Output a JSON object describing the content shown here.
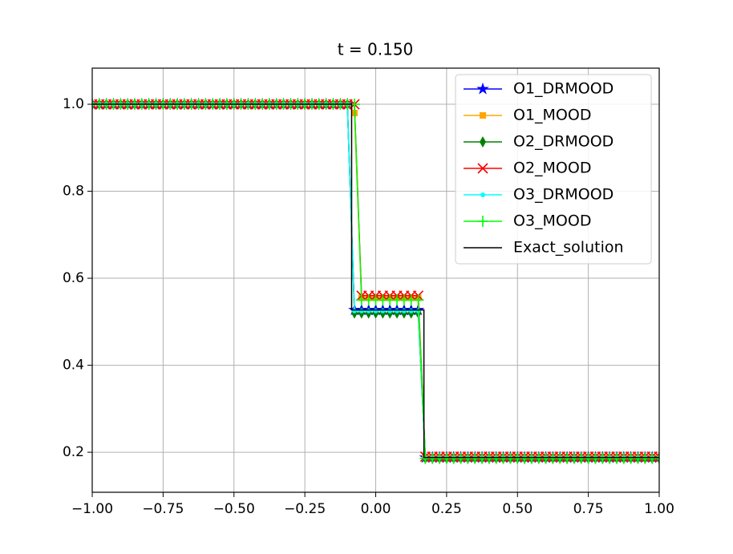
{
  "chart_data": {
    "type": "line",
    "title": "t = 0.150",
    "x": [
      -1,
      -0.975,
      -0.95,
      -0.925,
      -0.9,
      -0.875,
      -0.85,
      -0.825,
      -0.8,
      -0.775,
      -0.75,
      -0.725,
      -0.7,
      -0.675,
      -0.65,
      -0.625,
      -0.6,
      -0.575,
      -0.55,
      -0.525,
      -0.5,
      -0.475,
      -0.45,
      -0.425,
      -0.4,
      -0.375,
      -0.35,
      -0.325,
      -0.3,
      -0.275,
      -0.25,
      -0.225,
      -0.2,
      -0.175,
      -0.15,
      -0.125,
      -0.1,
      -0.075,
      -0.05,
      -0.025,
      0,
      0.025,
      0.05,
      0.075,
      0.1,
      0.125,
      0.15,
      0.175,
      0.2,
      0.225,
      0.25,
      0.275,
      0.3,
      0.325,
      0.35,
      0.375,
      0.4,
      0.425,
      0.45,
      0.475,
      0.5,
      0.525,
      0.55,
      0.575,
      0.6,
      0.625,
      0.65,
      0.675,
      0.7,
      0.725,
      0.75,
      0.775,
      0.8,
      0.825,
      0.85,
      0.875,
      0.9,
      0.925,
      0.95,
      0.975,
      1
    ],
    "series": [
      {
        "name": "O1_DRMOOD",
        "color": "#0000ff",
        "marker": "*",
        "values": [
          1,
          1,
          1,
          1,
          1,
          1,
          1,
          1,
          1,
          1,
          1,
          1,
          1,
          1,
          1,
          1,
          1,
          1,
          1,
          1,
          1,
          1,
          1,
          1,
          1,
          1,
          1,
          1,
          1,
          1,
          1,
          1,
          1,
          1,
          1,
          1,
          1,
          0.527,
          0.527,
          0.527,
          0.527,
          0.527,
          0.527,
          0.527,
          0.527,
          0.527,
          0.527,
          0.188,
          0.188,
          0.188,
          0.188,
          0.188,
          0.188,
          0.188,
          0.188,
          0.188,
          0.188,
          0.188,
          0.188,
          0.188,
          0.188,
          0.188,
          0.188,
          0.188,
          0.188,
          0.188,
          0.188,
          0.188,
          0.188,
          0.188,
          0.188,
          0.188,
          0.188,
          0.188,
          0.188,
          0.188,
          0.188,
          0.188,
          0.188,
          0.188,
          0.188
        ]
      },
      {
        "name": "O1_MOOD",
        "color": "#ffa500",
        "marker": "s",
        "values": [
          1,
          1,
          1,
          1,
          1,
          1,
          1,
          1,
          1,
          1,
          1,
          1,
          1,
          1,
          1,
          1,
          1,
          1,
          1,
          1,
          1,
          1,
          1,
          1,
          1,
          1,
          1,
          1,
          1,
          1,
          1,
          1,
          1,
          1,
          1,
          1,
          1,
          0.98,
          0.555,
          0.555,
          0.555,
          0.555,
          0.555,
          0.555,
          0.555,
          0.555,
          0.555,
          0.188,
          0.188,
          0.188,
          0.188,
          0.188,
          0.188,
          0.188,
          0.188,
          0.188,
          0.188,
          0.188,
          0.188,
          0.188,
          0.188,
          0.188,
          0.188,
          0.188,
          0.188,
          0.188,
          0.188,
          0.188,
          0.188,
          0.188,
          0.188,
          0.188,
          0.188,
          0.188,
          0.188,
          0.188,
          0.188,
          0.188,
          0.188,
          0.188,
          0.188
        ]
      },
      {
        "name": "O2_DRMOOD",
        "color": "#008000",
        "marker": "d",
        "values": [
          1,
          1,
          1,
          1,
          1,
          1,
          1,
          1,
          1,
          1,
          1,
          1,
          1,
          1,
          1,
          1,
          1,
          1,
          1,
          1,
          1,
          1,
          1,
          1,
          1,
          1,
          1,
          1,
          1,
          1,
          1,
          1,
          1,
          1,
          1,
          1,
          1,
          0.52,
          0.52,
          0.52,
          0.52,
          0.52,
          0.52,
          0.52,
          0.52,
          0.52,
          0.52,
          0.186,
          0.186,
          0.186,
          0.186,
          0.186,
          0.186,
          0.186,
          0.186,
          0.186,
          0.186,
          0.186,
          0.186,
          0.186,
          0.186,
          0.186,
          0.186,
          0.186,
          0.186,
          0.186,
          0.186,
          0.186,
          0.186,
          0.186,
          0.186,
          0.186,
          0.186,
          0.186,
          0.186,
          0.186,
          0.186,
          0.186,
          0.186,
          0.186,
          0.186
        ]
      },
      {
        "name": "O2_MOOD",
        "color": "#ff0000",
        "marker": "x",
        "values": [
          1,
          1,
          1,
          1,
          1,
          1,
          1,
          1,
          1,
          1,
          1,
          1,
          1,
          1,
          1,
          1,
          1,
          1,
          1,
          1,
          1,
          1,
          1,
          1,
          1,
          1,
          1,
          1,
          1,
          1,
          1,
          1,
          1,
          1,
          1,
          1,
          1,
          1,
          0.56,
          0.56,
          0.56,
          0.56,
          0.56,
          0.56,
          0.56,
          0.56,
          0.56,
          0.19,
          0.19,
          0.19,
          0.19,
          0.19,
          0.19,
          0.19,
          0.19,
          0.19,
          0.19,
          0.19,
          0.19,
          0.19,
          0.19,
          0.19,
          0.19,
          0.19,
          0.19,
          0.19,
          0.19,
          0.19,
          0.19,
          0.19,
          0.19,
          0.19,
          0.19,
          0.19,
          0.19,
          0.19,
          0.19,
          0.19,
          0.19,
          0.19,
          0.19
        ]
      },
      {
        "name": "O3_DRMOOD",
        "color": "#00ffff",
        "marker": ".",
        "values": [
          1,
          1,
          1,
          1,
          1,
          1,
          1,
          1,
          1,
          1,
          1,
          1,
          1,
          1,
          1,
          1,
          1,
          1,
          1,
          1,
          1,
          1,
          1,
          1,
          1,
          1,
          1,
          1,
          1,
          1,
          1,
          1,
          1,
          1,
          1,
          1,
          1,
          0.525,
          0.525,
          0.525,
          0.525,
          0.525,
          0.525,
          0.525,
          0.525,
          0.525,
          0.525,
          0.188,
          0.188,
          0.188,
          0.188,
          0.188,
          0.188,
          0.188,
          0.188,
          0.188,
          0.188,
          0.188,
          0.188,
          0.188,
          0.188,
          0.188,
          0.188,
          0.188,
          0.188,
          0.188,
          0.188,
          0.188,
          0.188,
          0.188,
          0.188,
          0.188,
          0.188,
          0.188,
          0.188,
          0.188,
          0.188,
          0.188,
          0.188,
          0.188,
          0.188
        ]
      },
      {
        "name": "O3_MOOD",
        "color": "#00ff00",
        "marker": "+",
        "values": [
          1,
          1,
          1,
          1,
          1,
          1,
          1,
          1,
          1,
          1,
          1,
          1,
          1,
          1,
          1,
          1,
          1,
          1,
          1,
          1,
          1,
          1,
          1,
          1,
          1,
          1,
          1,
          1,
          1,
          1,
          1,
          1,
          1,
          1,
          1,
          1,
          1,
          1,
          0.55,
          0.55,
          0.55,
          0.55,
          0.55,
          0.55,
          0.55,
          0.55,
          0.55,
          0.186,
          0.186,
          0.186,
          0.186,
          0.186,
          0.186,
          0.186,
          0.186,
          0.186,
          0.186,
          0.186,
          0.186,
          0.186,
          0.186,
          0.186,
          0.186,
          0.186,
          0.186,
          0.186,
          0.186,
          0.186,
          0.186,
          0.186,
          0.186,
          0.186,
          0.186,
          0.186,
          0.186,
          0.186,
          0.186,
          0.186,
          0.186,
          0.186,
          0.186
        ]
      },
      {
        "name": "Exact_solution",
        "color": "#000000",
        "x": [
          -1,
          -0.085,
          -0.085,
          0.17,
          0.17,
          1
        ],
        "values": [
          1,
          1,
          0.527,
          0.527,
          0.188,
          0.188
        ]
      }
    ],
    "xlim": [
      -1,
      1
    ],
    "xticks": [
      {
        "value": -1,
        "label": "−1.00"
      },
      {
        "value": -0.75,
        "label": "−0.75"
      },
      {
        "value": -0.5,
        "label": "−0.50"
      },
      {
        "value": -0.25,
        "label": "−0.25"
      },
      {
        "value": 0,
        "label": "0.00"
      },
      {
        "value": 0.25,
        "label": "0.25"
      },
      {
        "value": 0.5,
        "label": "0.50"
      },
      {
        "value": 0.75,
        "label": "0.75"
      },
      {
        "value": 1,
        "label": "1.00"
      }
    ],
    "ylim": [
      0.108,
      1.083
    ],
    "yticks": [
      0.2,
      0.4,
      0.6,
      0.8,
      {
        "value": 1,
        "label": "1.0"
      }
    ],
    "grid": true,
    "legend": "upper right"
  }
}
